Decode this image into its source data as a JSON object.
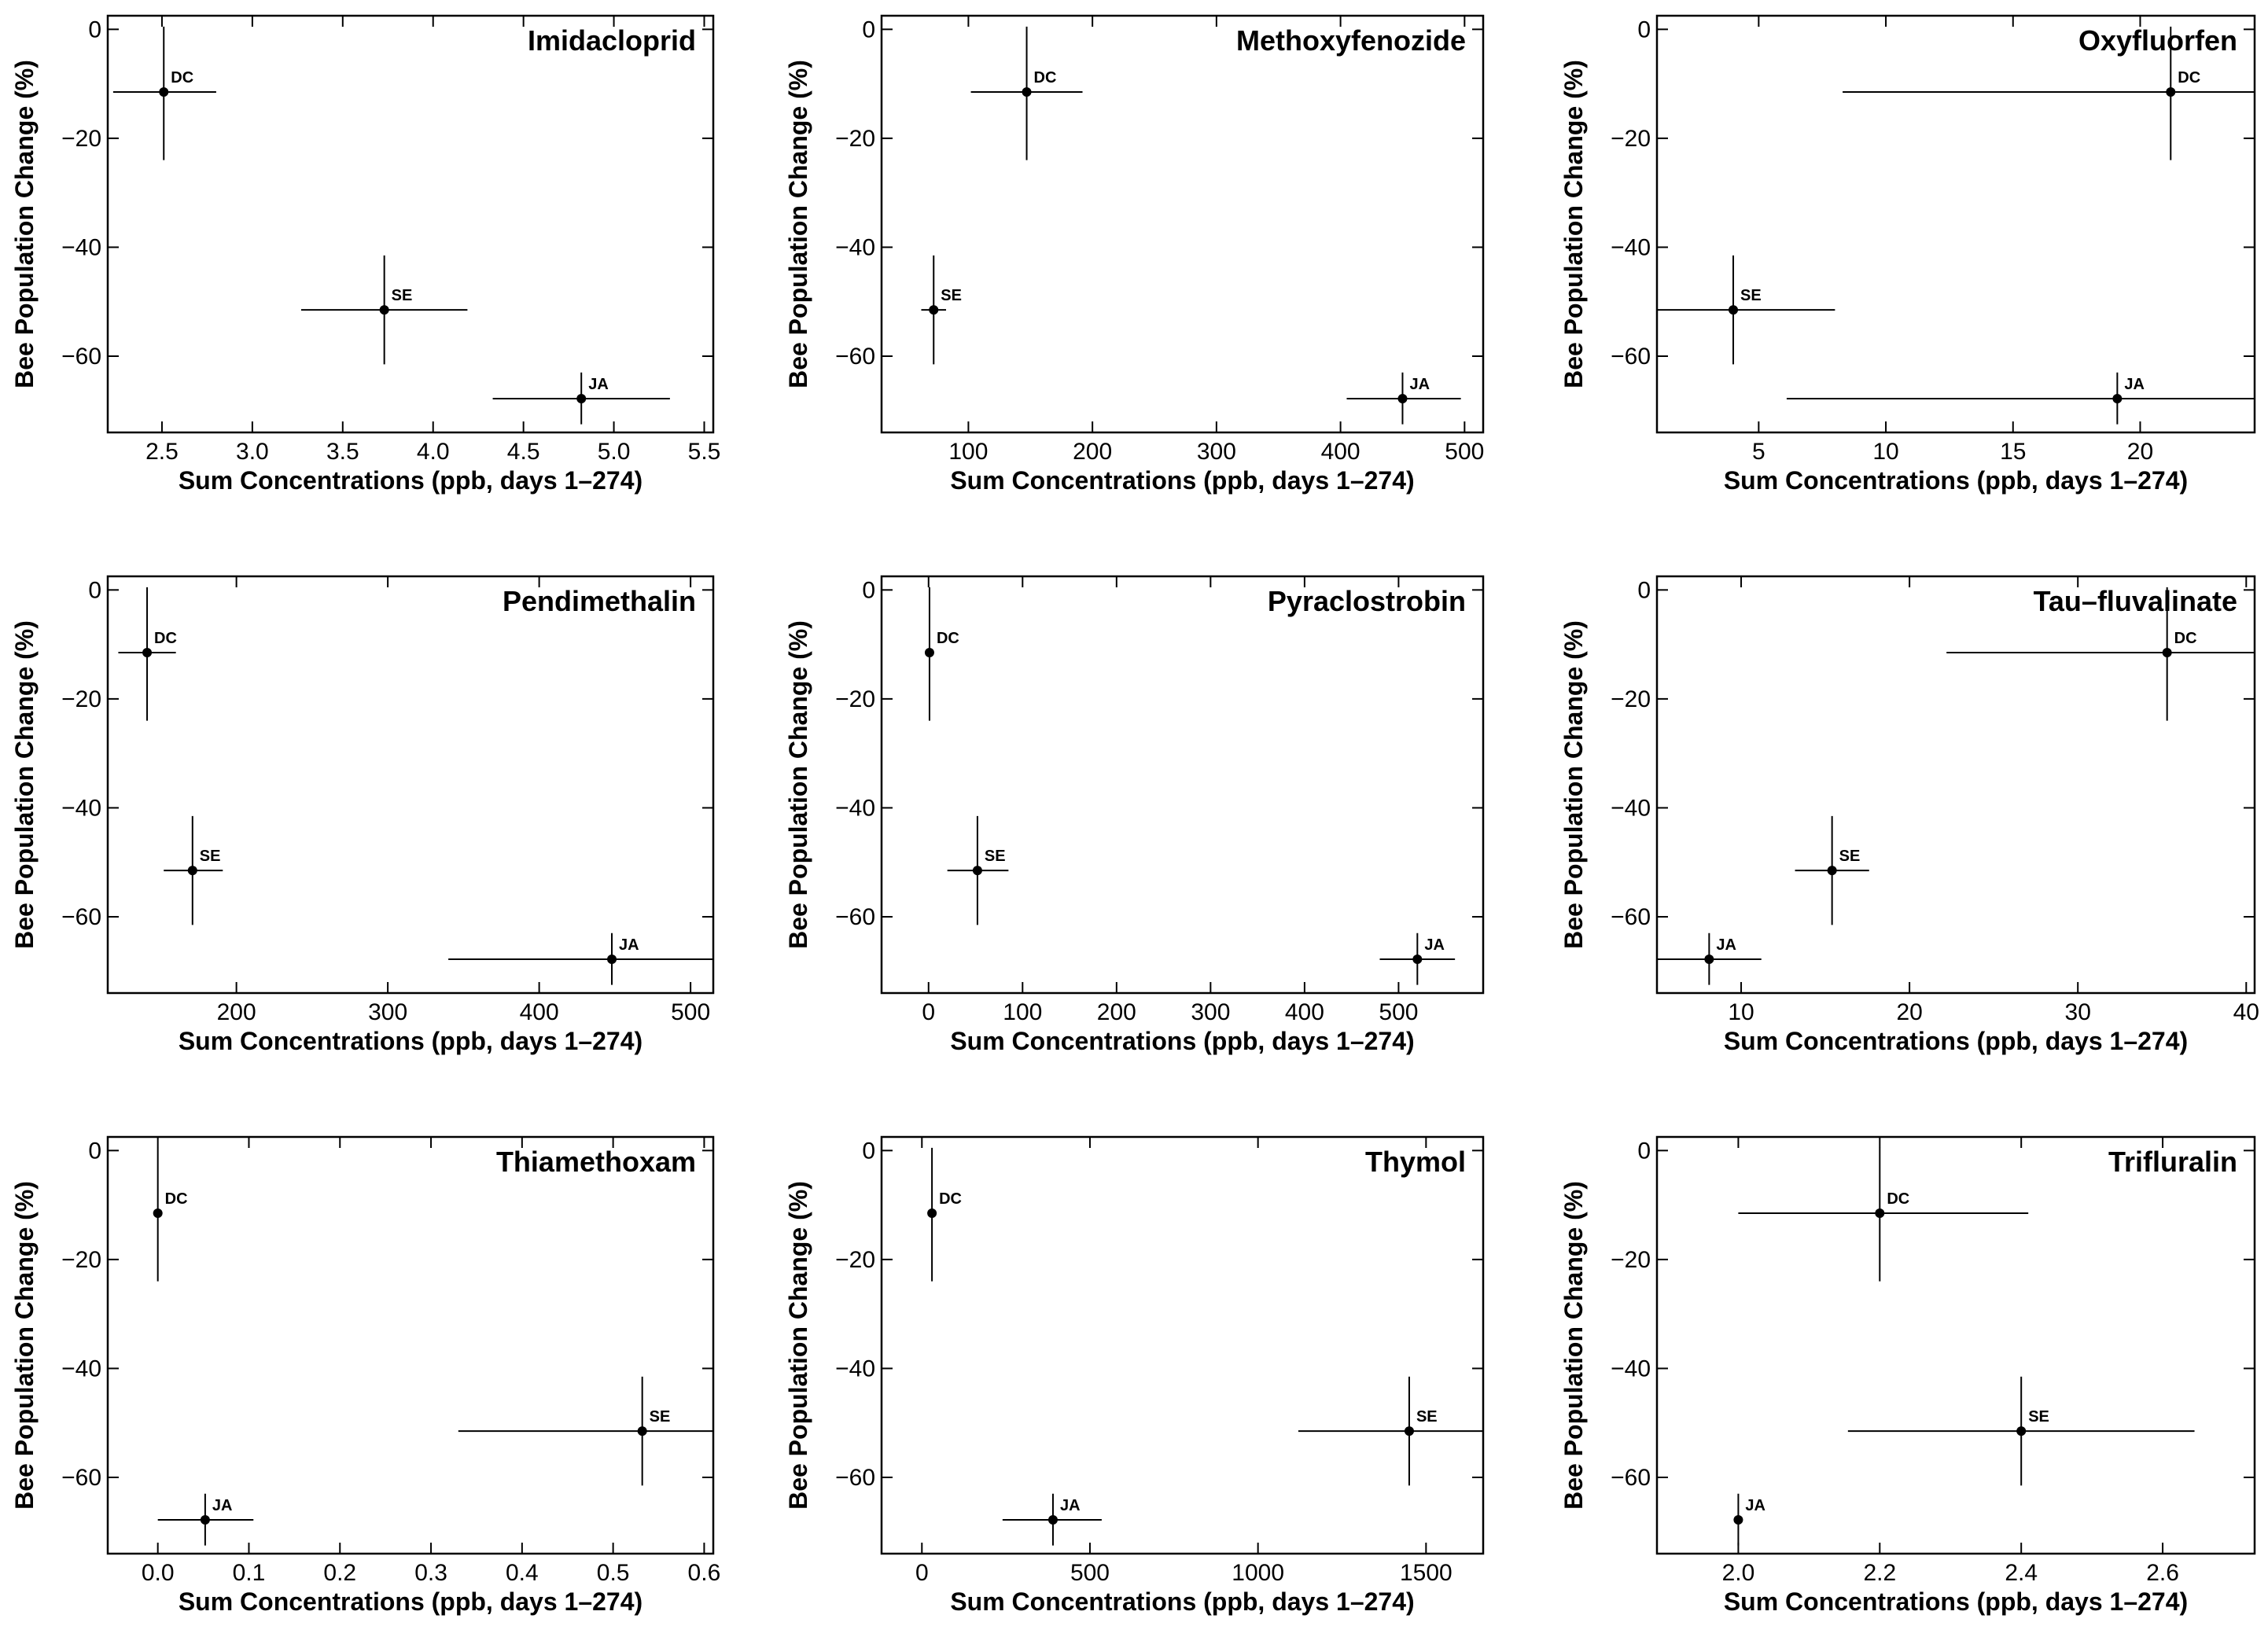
{
  "chart_data": [
    {
      "type": "scatter",
      "title": "Imidacloprid",
      "xlabel": "Sum Concentrations (ppb, days 1–274)",
      "ylabel": "Bee Population Change (%)",
      "xlim": [
        2.2,
        5.55
      ],
      "ylim": [
        -74,
        2.5
      ],
      "xticks": [
        2.5,
        3.0,
        3.5,
        4.0,
        4.5,
        5.0,
        5.5
      ],
      "xtick_labels": [
        "2.5",
        "3.0",
        "3.5",
        "4.0",
        "4.5",
        "5.0",
        "5.5"
      ],
      "yticks": [
        0,
        -20,
        -40,
        -60
      ],
      "ytick_labels": [
        "0",
        "−20",
        "−40",
        "−60"
      ],
      "points": [
        {
          "label": "DC",
          "x": 2.51,
          "y": -11.5,
          "x_lo": 2.23,
          "x_hi": 2.8,
          "y_lo": -24,
          "y_hi": 0.5
        },
        {
          "label": "SE",
          "x": 3.73,
          "y": -51.5,
          "x_lo": 3.27,
          "x_hi": 4.19,
          "y_lo": -61.5,
          "y_hi": -41.5
        },
        {
          "label": "JA",
          "x": 4.82,
          "y": -67.8,
          "x_lo": 4.33,
          "x_hi": 5.31,
          "y_lo": -72.5,
          "y_hi": -63
        }
      ]
    },
    {
      "type": "scatter",
      "title": "Methoxyfenozide",
      "xlabel": "Sum Concentrations (ppb, days 1–274)",
      "ylabel": "Bee Population Change (%)",
      "xlim": [
        30,
        515
      ],
      "ylim": [
        -74,
        2.5
      ],
      "xticks": [
        100,
        200,
        300,
        400,
        500
      ],
      "xtick_labels": [
        "100",
        "200",
        "300",
        "400",
        "500"
      ],
      "yticks": [
        0,
        -20,
        -40,
        -60
      ],
      "ytick_labels": [
        "0",
        "−20",
        "−40",
        "−60"
      ],
      "points": [
        {
          "label": "DC",
          "x": 147,
          "y": -11.5,
          "x_lo": 102,
          "x_hi": 192,
          "y_lo": -24,
          "y_hi": 0.5
        },
        {
          "label": "SE",
          "x": 72,
          "y": -51.5,
          "x_lo": 62,
          "x_hi": 82,
          "y_lo": -61.5,
          "y_hi": -41.5
        },
        {
          "label": "JA",
          "x": 450,
          "y": -67.8,
          "x_lo": 405,
          "x_hi": 497,
          "y_lo": -72.5,
          "y_hi": -63
        }
      ]
    },
    {
      "type": "scatter",
      "title": "Oxyfluorfen",
      "xlabel": "Sum Concentrations (ppb, days 1–274)",
      "ylabel": "Bee Population Change (%)",
      "xlim": [
        1,
        24.5
      ],
      "ylim": [
        -74,
        2.5
      ],
      "xticks": [
        5,
        10,
        15,
        20
      ],
      "xtick_labels": [
        "5",
        "10",
        "15",
        "20"
      ],
      "yticks": [
        0,
        -20,
        -40,
        -60
      ],
      "ytick_labels": [
        "0",
        "−20",
        "−40",
        "−60"
      ],
      "points": [
        {
          "label": "DC",
          "x": 21.2,
          "y": -11.5,
          "x_lo": 8.3,
          "x_hi": 24.5,
          "y_lo": -24,
          "y_hi": 0.5
        },
        {
          "label": "SE",
          "x": 4,
          "y": -51.5,
          "x_lo": 1,
          "x_hi": 8,
          "y_lo": -61.5,
          "y_hi": -41.5
        },
        {
          "label": "JA",
          "x": 19.1,
          "y": -67.8,
          "x_lo": 6.1,
          "x_hi": 24.5,
          "y_lo": -72.5,
          "y_hi": -63
        }
      ]
    },
    {
      "type": "scatter",
      "title": "Pendimethalin",
      "xlabel": "Sum Concentrations (ppb, days 1–274)",
      "ylabel": "Bee Population Change (%)",
      "xlim": [
        115,
        515
      ],
      "ylim": [
        -74,
        2.5
      ],
      "xticks": [
        200,
        300,
        400,
        500
      ],
      "xtick_labels": [
        "200",
        "300",
        "400",
        "500"
      ],
      "yticks": [
        0,
        -20,
        -40,
        -60
      ],
      "ytick_labels": [
        "0",
        "−20",
        "−40",
        "−60"
      ],
      "points": [
        {
          "label": "DC",
          "x": 141,
          "y": -11.5,
          "x_lo": 122,
          "x_hi": 160,
          "y_lo": -24,
          "y_hi": 0.5
        },
        {
          "label": "SE",
          "x": 171,
          "y": -51.5,
          "x_lo": 152,
          "x_hi": 191,
          "y_lo": -61.5,
          "y_hi": -41.5
        },
        {
          "label": "JA",
          "x": 448,
          "y": -67.8,
          "x_lo": 340,
          "x_hi": 515,
          "y_lo": -72.5,
          "y_hi": -63
        }
      ]
    },
    {
      "type": "scatter",
      "title": "Pyraclostrobin",
      "xlabel": "Sum Concentrations (ppb, days 1–274)",
      "ylabel": "Bee Population Change (%)",
      "xlim": [
        -50,
        590
      ],
      "ylim": [
        -74,
        2.5
      ],
      "xticks": [
        0,
        100,
        200,
        300,
        400,
        500
      ],
      "xtick_labels": [
        "0",
        "100",
        "200",
        "300",
        "400",
        "500"
      ],
      "yticks": [
        0,
        -20,
        -40,
        -60
      ],
      "ytick_labels": [
        "0",
        "−20",
        "−40",
        "−60"
      ],
      "points": [
        {
          "label": "DC",
          "x": 1,
          "y": -11.5,
          "x_lo": 0,
          "x_hi": 2,
          "y_lo": -24,
          "y_hi": 0.5
        },
        {
          "label": "SE",
          "x": 52,
          "y": -51.5,
          "x_lo": 20,
          "x_hi": 85,
          "y_lo": -61.5,
          "y_hi": -41.5
        },
        {
          "label": "JA",
          "x": 520,
          "y": -67.8,
          "x_lo": 480,
          "x_hi": 560,
          "y_lo": -72.5,
          "y_hi": -63
        }
      ]
    },
    {
      "type": "scatter",
      "title": "Tau–fluvalinate",
      "xlabel": "Sum Concentrations (ppb, days 1–274)",
      "ylabel": "Bee Population Change (%)",
      "xlim": [
        5,
        40.5
      ],
      "ylim": [
        -74,
        2.5
      ],
      "xticks": [
        10,
        20,
        30,
        40
      ],
      "xtick_labels": [
        "10",
        "20",
        "30",
        "40"
      ],
      "yticks": [
        0,
        -20,
        -40,
        -60
      ],
      "ytick_labels": [
        "0",
        "−20",
        "−40",
        "−60"
      ],
      "points": [
        {
          "label": "DC",
          "x": 35.3,
          "y": -11.5,
          "x_lo": 22.2,
          "x_hi": 40.5,
          "y_lo": -24,
          "y_hi": 0.5
        },
        {
          "label": "SE",
          "x": 15.4,
          "y": -51.5,
          "x_lo": 13.2,
          "x_hi": 17.6,
          "y_lo": -61.5,
          "y_hi": -41.5
        },
        {
          "label": "JA",
          "x": 8.1,
          "y": -67.8,
          "x_lo": 5,
          "x_hi": 11.2,
          "y_lo": -72.5,
          "y_hi": -63
        }
      ]
    },
    {
      "type": "scatter",
      "title": "Thiamethoxam",
      "xlabel": "Sum Concentrations (ppb, days 1–274)",
      "ylabel": "Bee Population Change (%)",
      "xlim": [
        -0.055,
        0.61
      ],
      "ylim": [
        -74,
        2.5
      ],
      "xticks": [
        0.0,
        0.1,
        0.2,
        0.3,
        0.4,
        0.5,
        0.6
      ],
      "xtick_labels": [
        "0.0",
        "0.1",
        "0.2",
        "0.3",
        "0.4",
        "0.5",
        "0.6"
      ],
      "yticks": [
        0,
        -20,
        -40,
        -60
      ],
      "ytick_labels": [
        "0",
        "−20",
        "−40",
        "−60"
      ],
      "points": [
        {
          "label": "DC",
          "x": 0.0,
          "y": -11.5,
          "x_lo": 0.0,
          "x_hi": 0.0,
          "y_lo": -24,
          "y_hi": 0.5
        },
        {
          "label": "SE",
          "x": 0.532,
          "y": -51.5,
          "x_lo": 0.33,
          "x_hi": 0.61,
          "y_lo": -61.5,
          "y_hi": -41.5
        },
        {
          "label": "JA",
          "x": 0.052,
          "y": -67.8,
          "x_lo": 0.0,
          "x_hi": 0.105,
          "y_lo": -72.5,
          "y_hi": -63
        }
      ]
    },
    {
      "type": "scatter",
      "title": "Thymol",
      "xlabel": "Sum Concentrations (ppb, days 1–274)",
      "ylabel": "Bee Population Change (%)",
      "xlim": [
        -120,
        1670
      ],
      "ylim": [
        -74,
        2.5
      ],
      "xticks": [
        0,
        500,
        1000,
        1500
      ],
      "xtick_labels": [
        "0",
        "500",
        "1000",
        "1500"
      ],
      "yticks": [
        0,
        -20,
        -40,
        -60
      ],
      "ytick_labels": [
        "0",
        "−20",
        "−40",
        "−60"
      ],
      "points": [
        {
          "label": "DC",
          "x": 30,
          "y": -11.5,
          "x_lo": 25,
          "x_hi": 35,
          "y_lo": -24,
          "y_hi": 0.5
        },
        {
          "label": "SE",
          "x": 1450,
          "y": -51.5,
          "x_lo": 1120,
          "x_hi": 1670,
          "y_lo": -61.5,
          "y_hi": -41.5
        },
        {
          "label": "JA",
          "x": 390,
          "y": -67.8,
          "x_lo": 240,
          "x_hi": 535,
          "y_lo": -72.5,
          "y_hi": -63
        }
      ]
    },
    {
      "type": "scatter",
      "title": "Trifluralin",
      "xlabel": "Sum Concentrations (ppb, days 1–274)",
      "ylabel": "Bee Population Change (%)",
      "xlim": [
        1.885,
        2.73
      ],
      "ylim": [
        -74,
        2.5
      ],
      "xticks": [
        2.0,
        2.2,
        2.4,
        2.6
      ],
      "xtick_labels": [
        "2.0",
        "2.2",
        "2.4",
        "2.6"
      ],
      "yticks": [
        0,
        -20,
        -40,
        -60
      ],
      "ytick_labels": [
        "0",
        "−20",
        "−40",
        "−60"
      ],
      "points": [
        {
          "label": "DC",
          "x": 2.2,
          "y": -11.5,
          "x_lo": 2.0,
          "x_hi": 2.41,
          "y_lo": -24,
          "y_hi": 0.5
        },
        {
          "label": "SE",
          "x": 2.4,
          "y": -51.5,
          "x_lo": 2.155,
          "x_hi": 2.645,
          "y_lo": -61.5,
          "y_hi": -41.5
        },
        {
          "label": "JA",
          "x": 2.0,
          "y": -67.8,
          "x_lo": 2.0,
          "x_hi": 2.0,
          "y_lo": -72.5,
          "y_hi": -63
        }
      ]
    }
  ]
}
